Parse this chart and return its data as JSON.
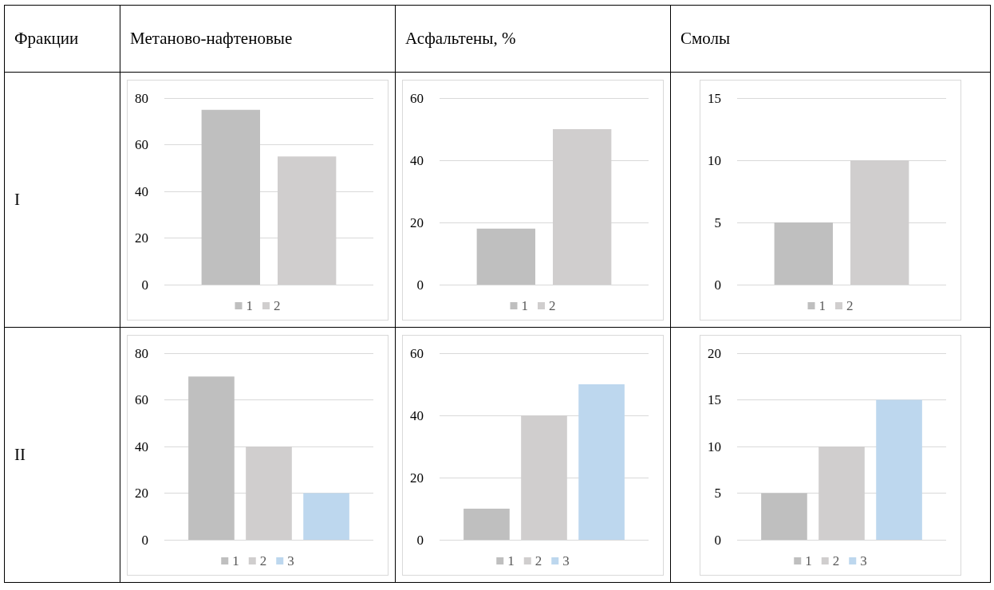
{
  "chart_data": [
    {
      "type": "other",
      "annotations": [
        "Фракции",
        "Метаново-нафтеновые",
        "Асфальтены, %",
        "Смолы",
        "I",
        "II"
      ]
    },
    {
      "type": "bar",
      "categories": [
        null
      ],
      "series": [
        {
          "name": "1",
          "color": "#bfbfbf",
          "values": [
            75
          ]
        },
        {
          "name": "2",
          "color": "#d0cece",
          "values": [
            55
          ]
        }
      ],
      "ylim": [
        0,
        80
      ],
      "yticks": [
        0,
        20,
        40,
        60,
        80
      ],
      "grid": "y",
      "legend": "bottom"
    },
    {
      "type": "bar",
      "categories": [
        null
      ],
      "series": [
        {
          "name": "1",
          "color": "#bfbfbf",
          "values": [
            18
          ]
        },
        {
          "name": "2",
          "color": "#d0cece",
          "values": [
            50
          ]
        }
      ],
      "ylim": [
        0,
        60
      ],
      "yticks": [
        0,
        20,
        40,
        60
      ],
      "grid": "y",
      "legend": "bottom"
    },
    {
      "type": "bar",
      "categories": [
        null
      ],
      "series": [
        {
          "name": "1",
          "color": "#bfbfbf",
          "values": [
            5
          ]
        },
        {
          "name": "2",
          "color": "#d0cece",
          "values": [
            10
          ]
        }
      ],
      "ylim": [
        0,
        15
      ],
      "yticks": [
        0,
        5,
        10,
        15
      ],
      "grid": "y",
      "legend": "bottom"
    },
    {
      "type": "bar",
      "categories": [
        null
      ],
      "series": [
        {
          "name": "1",
          "color": "#bfbfbf",
          "values": [
            70
          ]
        },
        {
          "name": "2",
          "color": "#d0cece",
          "values": [
            40
          ]
        },
        {
          "name": "3",
          "color": "#bdd7ee",
          "values": [
            20
          ]
        }
      ],
      "ylim": [
        0,
        80
      ],
      "yticks": [
        0,
        20,
        40,
        60,
        80
      ],
      "grid": "y",
      "legend": "bottom"
    },
    {
      "type": "bar",
      "categories": [
        null
      ],
      "series": [
        {
          "name": "1",
          "color": "#bfbfbf",
          "values": [
            10
          ]
        },
        {
          "name": "2",
          "color": "#d0cece",
          "values": [
            40
          ]
        },
        {
          "name": "3",
          "color": "#bdd7ee",
          "values": [
            50
          ]
        }
      ],
      "ylim": [
        0,
        60
      ],
      "yticks": [
        0,
        20,
        40,
        60
      ],
      "grid": "y",
      "legend": "bottom"
    },
    {
      "type": "bar",
      "categories": [
        null
      ],
      "series": [
        {
          "name": "1",
          "color": "#bfbfbf",
          "values": [
            5
          ]
        },
        {
          "name": "2",
          "color": "#d0cece",
          "values": [
            10
          ]
        },
        {
          "name": "3",
          "color": "#bdd7ee",
          "values": [
            15
          ]
        }
      ],
      "ylim": [
        0,
        20
      ],
      "yticks": [
        0,
        5,
        10,
        15,
        20
      ],
      "grid": "y",
      "legend": "bottom"
    }
  ]
}
